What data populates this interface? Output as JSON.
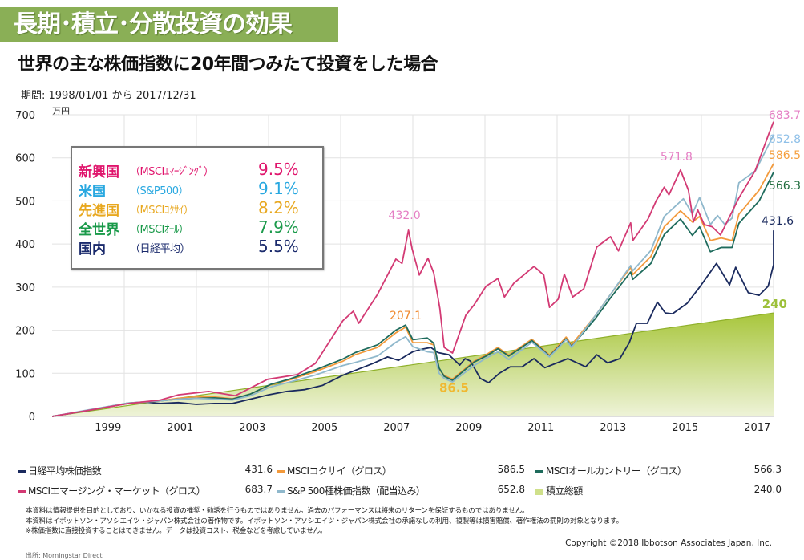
{
  "header": {
    "title": "長期･積立･分散投資の効果",
    "subtitle": "世界の主な株価指数に20年間つみたて投資をした場合",
    "period": "期間: 1998/01/01 から 2017/12/31"
  },
  "summary_box": {
    "rows": [
      {
        "region": "新興国",
        "index": "（MSCIｴﾏｰｼﾞﾝｸﾞ）",
        "rate": "9.5%",
        "color": "#e0146c"
      },
      {
        "region": "米国",
        "index": "（S&P500）",
        "rate": "9.1%",
        "color": "#29a8e0"
      },
      {
        "region": "先進国",
        "index": "（MSCIｺｸｻｲ）",
        "rate": "8.2%",
        "color": "#e8a820"
      },
      {
        "region": "全世界",
        "index": "（MSCIｵｰﾙ）",
        "rate": "7.9%",
        "color": "#1a9a4a"
      },
      {
        "region": "国内",
        "index": "（日経平均）",
        "rate": "5.5%",
        "color": "#1a2a6c"
      }
    ]
  },
  "chart_data": {
    "type": "line",
    "yunit": "万円",
    "ylim": [
      0,
      700
    ],
    "yticks": [
      "0",
      "100",
      "200",
      "300",
      "400",
      "500",
      "600",
      "700"
    ],
    "xlim": [
      1998,
      2018
    ],
    "xticks": [
      "1999",
      "2001",
      "2003",
      "2005",
      "2007",
      "2009",
      "2011",
      "2013",
      "2015",
      "2017"
    ],
    "grid": true,
    "series": [
      {
        "key": "contrib",
        "name": "積立総額",
        "final": "240.0",
        "color": "#9dc03a",
        "type": "area",
        "points": [
          [
            1998,
            0
          ],
          [
            2018,
            240
          ]
        ]
      },
      {
        "key": "nikkei",
        "name": "日経平均株価指数",
        "final": "431.6",
        "color": "#1a2a5e",
        "points": [
          [
            1998,
            0
          ],
          [
            1999,
            14
          ],
          [
            2000.1,
            30
          ],
          [
            2000.6,
            33
          ],
          [
            2001,
            30
          ],
          [
            2001.5,
            32
          ],
          [
            2002,
            28
          ],
          [
            2002.5,
            30
          ],
          [
            2003,
            30
          ],
          [
            2003.5,
            40
          ],
          [
            2004,
            50
          ],
          [
            2004.5,
            58
          ],
          [
            2005,
            62
          ],
          [
            2005.5,
            72
          ],
          [
            2006.05,
            95
          ],
          [
            2006.5,
            110
          ],
          [
            2006.9,
            123
          ],
          [
            2007.3,
            138
          ],
          [
            2007.6,
            130
          ],
          [
            2008,
            150
          ],
          [
            2008.2,
            155
          ],
          [
            2008.5,
            160
          ],
          [
            2008.7,
            148
          ],
          [
            2009,
            143
          ],
          [
            2009.3,
            119
          ],
          [
            2009.45,
            134
          ],
          [
            2009.6,
            128
          ],
          [
            2009.87,
            88
          ],
          [
            2010.1,
            78
          ],
          [
            2010.4,
            100
          ],
          [
            2010.7,
            115
          ],
          [
            2011.03,
            115
          ],
          [
            2011.36,
            134
          ],
          [
            2011.66,
            113
          ],
          [
            2012.3,
            134
          ],
          [
            2012.79,
            115
          ],
          [
            2013.1,
            143
          ],
          [
            2013.4,
            124
          ],
          [
            2013.74,
            134
          ],
          [
            2014,
            171
          ],
          [
            2014.2,
            216
          ],
          [
            2014.5,
            216
          ],
          [
            2014.78,
            265
          ],
          [
            2015,
            240
          ],
          [
            2015.2,
            238
          ],
          [
            2015.6,
            262
          ],
          [
            2015.97,
            302
          ],
          [
            2016.42,
            355
          ],
          [
            2016.78,
            305
          ],
          [
            2016.95,
            346
          ],
          [
            2017.3,
            287
          ],
          [
            2017.6,
            281
          ],
          [
            2017.85,
            302
          ],
          [
            2018.1,
            352
          ],
          [
            2018.49,
            365
          ],
          [
            2018.75,
            384
          ],
          [
            2019,
            431.6
          ]
        ]
      },
      {
        "key": "kokusai",
        "name": "MSCIコクサイ（グロス）",
        "final": "586.5",
        "color": "#f39a3c",
        "points": [
          [
            1998,
            0
          ],
          [
            1999,
            14
          ],
          [
            2000.1,
            30
          ],
          [
            2001,
            36
          ],
          [
            2001.5,
            42
          ],
          [
            2002,
            45
          ],
          [
            2002.5,
            45
          ],
          [
            2003,
            41
          ],
          [
            2003.5,
            52
          ],
          [
            2004.05,
            73
          ],
          [
            2004.6,
            85
          ],
          [
            2005.3,
            104
          ],
          [
            2006.06,
            128
          ],
          [
            2006.4,
            143
          ],
          [
            2007.02,
            160
          ],
          [
            2007.53,
            194
          ],
          [
            2007.8,
            207.1
          ],
          [
            2008,
            171
          ],
          [
            2008.4,
            171
          ],
          [
            2008.58,
            166
          ],
          [
            2008.73,
            110
          ],
          [
            2008.87,
            95
          ],
          [
            2009.1,
            86.5
          ],
          [
            2009.7,
            128
          ],
          [
            2010.03,
            143
          ],
          [
            2010.36,
            160
          ],
          [
            2010.66,
            142
          ],
          [
            2011.3,
            179
          ],
          [
            2011.79,
            142
          ],
          [
            2012.25,
            184
          ],
          [
            2012.4,
            166
          ],
          [
            2013.07,
            235
          ],
          [
            2013.48,
            283
          ],
          [
            2014.04,
            346
          ],
          [
            2014.1,
            329
          ],
          [
            2014.6,
            371
          ],
          [
            2014.97,
            440
          ],
          [
            2015.42,
            477
          ],
          [
            2015.75,
            451
          ],
          [
            2015.95,
            464
          ],
          [
            2016.25,
            408
          ],
          [
            2016.55,
            414
          ],
          [
            2016.85,
            408
          ],
          [
            2017.04,
            469
          ],
          [
            2017.6,
            525
          ],
          [
            2018,
            586.5
          ]
        ]
      },
      {
        "key": "acwi",
        "name": "MSCIオールカントリー（グロス）",
        "final": "566.3",
        "color": "#1e6b5c",
        "points": [
          [
            1998,
            0
          ],
          [
            1999,
            14
          ],
          [
            2000.1,
            31
          ],
          [
            2001,
            36
          ],
          [
            2001.5,
            40
          ],
          [
            2002,
            42
          ],
          [
            2002.5,
            43
          ],
          [
            2003,
            40
          ],
          [
            2003.5,
            52
          ],
          [
            2004.05,
            74
          ],
          [
            2004.6,
            87
          ],
          [
            2005.3,
            108
          ],
          [
            2006.06,
            133
          ],
          [
            2006.4,
            148
          ],
          [
            2007.02,
            166
          ],
          [
            2007.53,
            200
          ],
          [
            2007.8,
            212
          ],
          [
            2008,
            178
          ],
          [
            2008.4,
            182
          ],
          [
            2008.58,
            170
          ],
          [
            2008.73,
            112
          ],
          [
            2008.87,
            93
          ],
          [
            2009.1,
            84
          ],
          [
            2009.7,
            126
          ],
          [
            2010.03,
            140
          ],
          [
            2010.36,
            157
          ],
          [
            2010.66,
            140
          ],
          [
            2011.3,
            176
          ],
          [
            2011.79,
            140
          ],
          [
            2012.25,
            180
          ],
          [
            2012.4,
            162
          ],
          [
            2013.07,
            228
          ],
          [
            2013.48,
            275
          ],
          [
            2014.04,
            335
          ],
          [
            2014.1,
            318
          ],
          [
            2014.6,
            355
          ],
          [
            2014.97,
            422
          ],
          [
            2015.42,
            458
          ],
          [
            2015.75,
            420
          ],
          [
            2015.95,
            440
          ],
          [
            2016.25,
            382
          ],
          [
            2016.55,
            392
          ],
          [
            2016.85,
            392
          ],
          [
            2017.04,
            448
          ],
          [
            2017.6,
            500
          ],
          [
            2018,
            566.3
          ]
        ]
      },
      {
        "key": "sp500",
        "name": "S&P 500種株価指数（配当込み）",
        "final": "652.8",
        "color": "#8fb8cc",
        "points": [
          [
            1998,
            0
          ],
          [
            1999,
            15
          ],
          [
            2000.1,
            31
          ],
          [
            2001,
            36
          ],
          [
            2001.5,
            40
          ],
          [
            2002,
            42
          ],
          [
            2002.5,
            40
          ],
          [
            2003,
            38
          ],
          [
            2003.5,
            48
          ],
          [
            2004.05,
            68
          ],
          [
            2004.6,
            80
          ],
          [
            2005.3,
            96
          ],
          [
            2006.06,
            118
          ],
          [
            2006.4,
            125
          ],
          [
            2007.02,
            140
          ],
          [
            2007.53,
            172
          ],
          [
            2007.8,
            185
          ],
          [
            2008,
            162
          ],
          [
            2008.4,
            150
          ],
          [
            2008.58,
            148
          ],
          [
            2008.73,
            100
          ],
          [
            2008.87,
            88
          ],
          [
            2009.1,
            80
          ],
          [
            2009.7,
            118
          ],
          [
            2010.03,
            135
          ],
          [
            2010.36,
            150
          ],
          [
            2010.66,
            132
          ],
          [
            2011.3,
            172
          ],
          [
            2011.79,
            138
          ],
          [
            2012.25,
            178
          ],
          [
            2012.4,
            160
          ],
          [
            2013.07,
            235
          ],
          [
            2013.48,
            283
          ],
          [
            2014.04,
            350
          ],
          [
            2014.1,
            338
          ],
          [
            2014.6,
            385
          ],
          [
            2014.97,
            464
          ],
          [
            2015.5,
            505
          ],
          [
            2015.75,
            470
          ],
          [
            2015.95,
            508
          ],
          [
            2016.25,
            445
          ],
          [
            2016.45,
            466
          ],
          [
            2016.65,
            445
          ],
          [
            2016.85,
            460
          ],
          [
            2017.04,
            542
          ],
          [
            2017.5,
            570
          ],
          [
            2018,
            652.8
          ]
        ]
      },
      {
        "key": "em",
        "name": "MSCIエマージング・マーケット（グロス）",
        "final": "683.7",
        "color": "#d33a74",
        "points": [
          [
            1998,
            0
          ],
          [
            1999,
            14
          ],
          [
            2000.12,
            30
          ],
          [
            2001,
            38
          ],
          [
            2001.5,
            50
          ],
          [
            2002.34,
            58
          ],
          [
            2003.08,
            48
          ],
          [
            2003.97,
            86
          ],
          [
            2004.8,
            97
          ],
          [
            2005.3,
            123
          ],
          [
            2006.06,
            222
          ],
          [
            2006.35,
            244
          ],
          [
            2006.5,
            216
          ],
          [
            2007.02,
            283
          ],
          [
            2007.53,
            365
          ],
          [
            2007.7,
            355
          ],
          [
            2007.88,
            432.0
          ],
          [
            2007.98,
            389
          ],
          [
            2008.18,
            328
          ],
          [
            2008.42,
            367
          ],
          [
            2008.58,
            333
          ],
          [
            2008.75,
            250
          ],
          [
            2008.87,
            160
          ],
          [
            2009.1,
            147
          ],
          [
            2009.47,
            235
          ],
          [
            2009.7,
            259
          ],
          [
            2010.03,
            302
          ],
          [
            2010.36,
            320
          ],
          [
            2010.54,
            277
          ],
          [
            2010.8,
            309
          ],
          [
            2011.36,
            348
          ],
          [
            2011.63,
            328
          ],
          [
            2011.79,
            253
          ],
          [
            2012.03,
            272
          ],
          [
            2012.2,
            330
          ],
          [
            2012.43,
            277
          ],
          [
            2012.74,
            296
          ],
          [
            2013.1,
            393
          ],
          [
            2013.48,
            417
          ],
          [
            2013.7,
            384
          ],
          [
            2014.04,
            449
          ],
          [
            2014.1,
            408
          ],
          [
            2014.52,
            458
          ],
          [
            2014.75,
            501
          ],
          [
            2014.97,
            532
          ],
          [
            2015.1,
            514
          ],
          [
            2015.42,
            571.8
          ],
          [
            2015.64,
            525
          ],
          [
            2015.78,
            451
          ],
          [
            2015.9,
            479
          ],
          [
            2016.08,
            445
          ],
          [
            2016.3,
            440
          ],
          [
            2016.53,
            421
          ],
          [
            2016.75,
            458
          ],
          [
            2017.04,
            507
          ],
          [
            2017.49,
            570
          ],
          [
            2017.87,
            656
          ],
          [
            2018,
            683.7
          ]
        ]
      }
    ],
    "annotations": [
      {
        "text": "432.0",
        "x": 2007.88,
        "y": 432.0,
        "color": "#e57fc4"
      },
      {
        "text": "207.1",
        "x": 2007.8,
        "y": 207.1,
        "color": "#f08a30"
      },
      {
        "text": "86.5",
        "x": 2009.1,
        "y": 86.5,
        "color": "#f0b830"
      },
      {
        "text": "571.8",
        "x": 2015.42,
        "y": 571.8,
        "color": "#e57fc4"
      },
      {
        "text": "683.7",
        "x": 2018,
        "y": 683.7,
        "color": "#e57fc4"
      },
      {
        "text": "652.8",
        "x": 2018,
        "y": 652.8,
        "color": "#8fc0e8"
      },
      {
        "text": "586.5",
        "x": 2018,
        "y": 586.5,
        "color": "#f5a040"
      },
      {
        "text": "566.3",
        "x": 2018,
        "y": 566.3,
        "color": "#1e6b3c"
      },
      {
        "text": "431.6",
        "x": 2018,
        "y": 431.6,
        "color": "#1a2a5e"
      },
      {
        "text": "240",
        "x": 2018,
        "y": 240,
        "color": "#9dc03a"
      }
    ]
  },
  "footer": {
    "notes": [
      "本資料は情報提供を目的としており、いかなる投資の推奨・勧誘を行うものではありません。過去のパフォーマンスは将来のリターンを保証するものではありません。",
      "本資料はイボットソン・アソシエイツ・ジャパン株式会社の著作物です。イボットソン・アソシエイツ・ジャパン株式会社の承諾なしの利用、複製等は損害賠償、著作権法の罰則の対象となります。",
      "※株価指数に直接投資することはできません。データは投資コスト、税金などを考慮していません。"
    ],
    "copyright": "Copyright ©2018 Ibbotson Associates Japan, Inc.",
    "source": "出所: Morningstar Direct"
  }
}
